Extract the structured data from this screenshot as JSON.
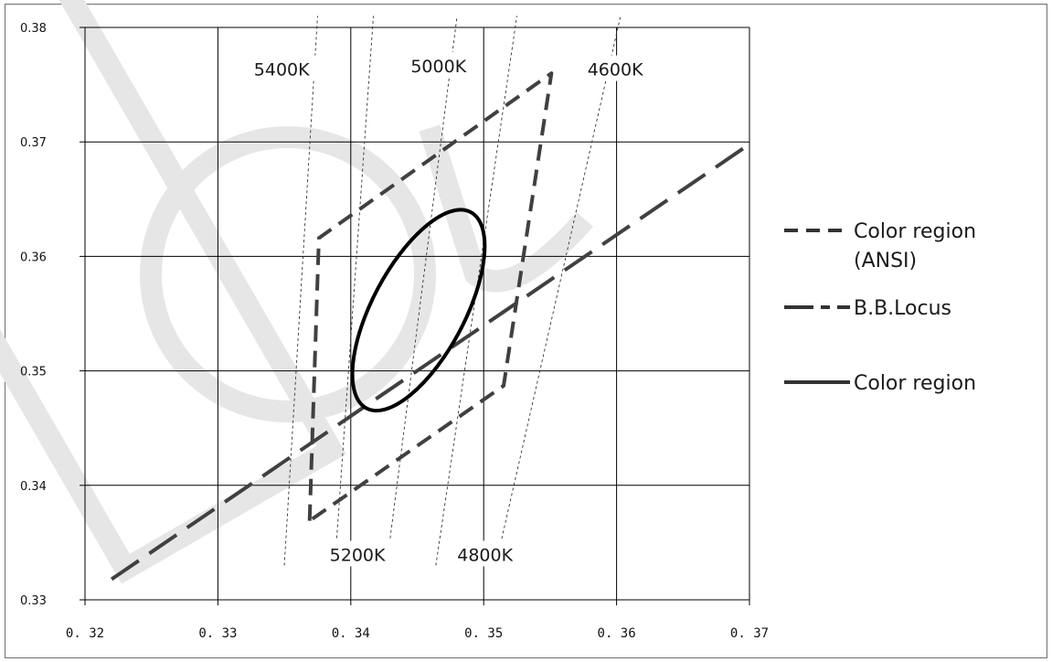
{
  "chart_data": {
    "type": "line",
    "title": "",
    "xlabel": "",
    "ylabel": "",
    "xlim": [
      0.32,
      0.37
    ],
    "ylim": [
      0.33,
      0.38
    ],
    "grid": true,
    "legend_position": "right",
    "x_ticks": [
      0.32,
      0.33,
      0.34,
      0.35,
      0.36,
      0.37
    ],
    "x_tick_labels": [
      "0. 32",
      "0. 33",
      "0. 34",
      "0. 35",
      "0. 36",
      "0. 37"
    ],
    "y_ticks": [
      0.33,
      0.34,
      0.35,
      0.36,
      0.37,
      0.38
    ],
    "y_tick_labels": [
      "0.33",
      "0.34",
      "0.35",
      "0.36",
      "0.37",
      "0.38"
    ],
    "series": [
      {
        "name": "Color region (ANSI)",
        "style": "dashed",
        "color": "#404040",
        "x": [
          0.3369,
          0.3376,
          0.3551,
          0.3515,
          0.3369
        ],
        "y": [
          0.3369,
          0.3616,
          0.376,
          0.3487,
          0.3369
        ]
      },
      {
        "name": "B.B.Locus",
        "style": "long-dashed",
        "color": "#404040",
        "x": [
          0.322,
          0.37
        ],
        "y": [
          0.3318,
          0.3698
        ]
      },
      {
        "name": "Color region",
        "style": "solid",
        "color": "#000000",
        "shape": "ellipse",
        "center": [
          0.3451,
          0.3553
        ],
        "x_extent": [
          0.3395,
          0.3507
        ],
        "y_extent": [
          0.3456,
          0.365
        ]
      }
    ],
    "isotemperature_lines": [
      {
        "label": "5400K",
        "x": [
          0.335,
          0.3375
        ],
        "y": [
          0.333,
          0.381
        ]
      },
      {
        "label": "5200K",
        "x": [
          0.3388,
          0.3417
        ],
        "y": [
          0.333,
          0.381
        ]
      },
      {
        "label": "5000K",
        "x": [
          0.3427,
          0.348
        ],
        "y": [
          0.333,
          0.381
        ]
      },
      {
        "label": "4800K",
        "x": [
          0.3464,
          0.3525
        ],
        "y": [
          0.333,
          0.381
        ]
      },
      {
        "label": "4600K",
        "x": [
          0.3509,
          0.3603
        ],
        "y": [
          0.333,
          0.381
        ]
      }
    ],
    "annotations": [
      {
        "text": "5400K",
        "x": 0.3348,
        "y": 0.3762
      },
      {
        "text": "5000K",
        "x": 0.3466,
        "y": 0.3765
      },
      {
        "text": "4600K",
        "x": 0.3599,
        "y": 0.3762
      },
      {
        "text": "5200K",
        "x": 0.3405,
        "y": 0.3338
      },
      {
        "text": "4800K",
        "x": 0.3501,
        "y": 0.3338
      }
    ],
    "legend": [
      {
        "label": "Color region",
        "label_line2": "(ANSI)",
        "style": "dashed"
      },
      {
        "label": "B.B.Locus",
        "style": "long-dashed"
      },
      {
        "label": "Color region",
        "style": "solid"
      }
    ]
  }
}
